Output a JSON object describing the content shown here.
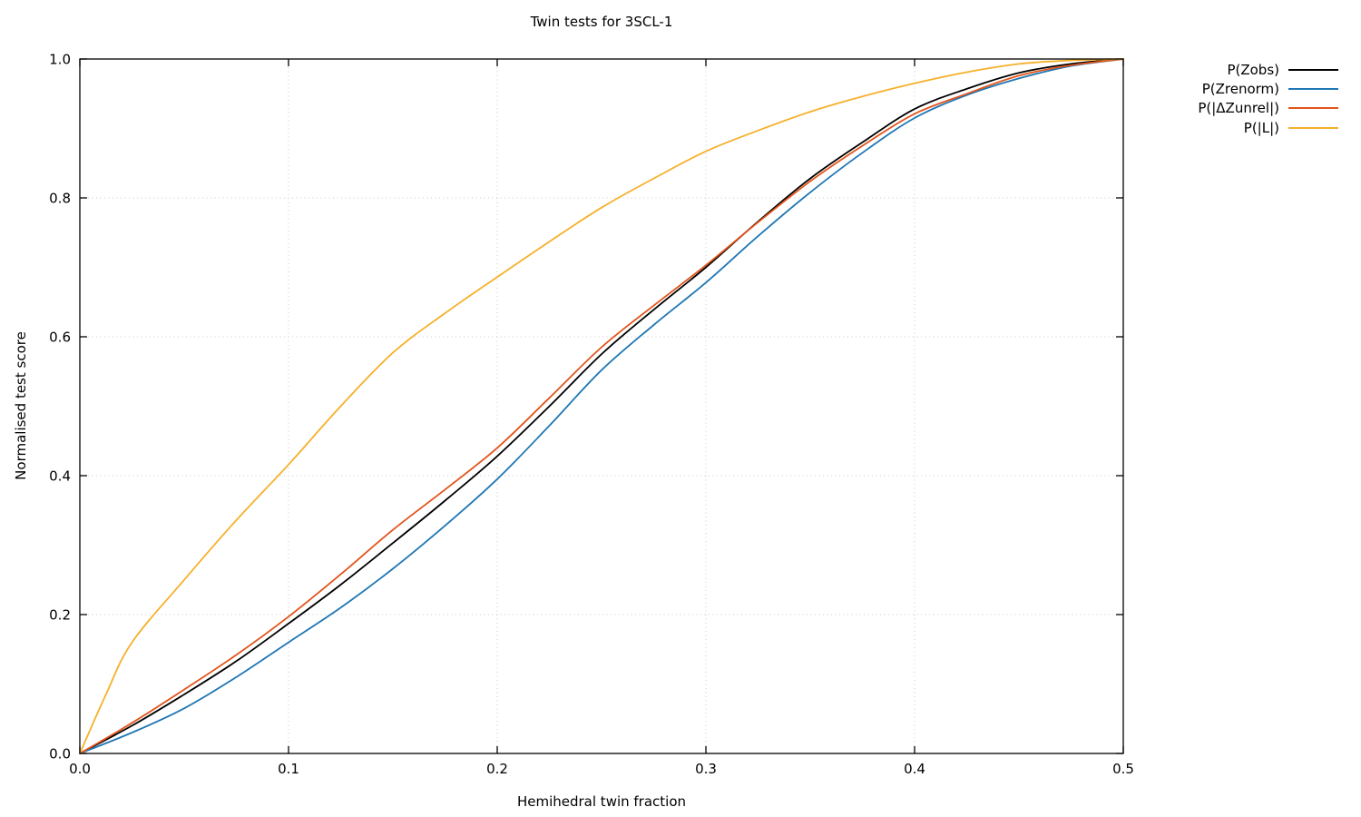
{
  "chart_data": {
    "type": "line",
    "title": "Twin tests for 3SCL-1",
    "xlabel": "Hemihedral twin fraction",
    "ylabel": "Normalised test score",
    "xlim": [
      0.0,
      0.5
    ],
    "ylim": [
      0.0,
      1.0
    ],
    "x_ticks": {
      "values": [
        0.0,
        0.1,
        0.2,
        0.3,
        0.4,
        0.5
      ],
      "labels": [
        "0.0",
        "0.1",
        "0.2",
        "0.3",
        "0.4",
        "0.5"
      ]
    },
    "y_ticks": {
      "values": [
        0.0,
        0.2,
        0.4,
        0.6,
        0.8,
        1.0
      ],
      "labels": [
        "0.0",
        "0.2",
        "0.4",
        "0.6",
        "0.8",
        "1.0"
      ]
    },
    "grid": "dotted",
    "legend_position": "outside-top-right",
    "frame": "box-with-mirrored-inward-ticks",
    "series": [
      {
        "name": "P(Zobs)",
        "color": "#000000",
        "x": [
          0,
          0.025,
          0.05,
          0.075,
          0.1,
          0.125,
          0.15,
          0.175,
          0.2,
          0.225,
          0.25,
          0.275,
          0.3,
          0.325,
          0.35,
          0.375,
          0.4,
          0.425,
          0.45,
          0.475,
          0.5
        ],
        "y": [
          0,
          0.04,
          0.085,
          0.133,
          0.187,
          0.243,
          0.303,
          0.364,
          0.428,
          0.5,
          0.575,
          0.639,
          0.7,
          0.766,
          0.828,
          0.88,
          0.928,
          0.957,
          0.98,
          0.993,
          1.0
        ]
      },
      {
        "name": "P(Zrenorm)",
        "color": "#1f77b4",
        "x": [
          0,
          0.025,
          0.05,
          0.075,
          0.1,
          0.125,
          0.15,
          0.175,
          0.2,
          0.225,
          0.25,
          0.275,
          0.3,
          0.325,
          0.35,
          0.375,
          0.4,
          0.425,
          0.45,
          0.475,
          0.5
        ],
        "y": [
          0,
          0.03,
          0.065,
          0.11,
          0.16,
          0.21,
          0.266,
          0.328,
          0.395,
          0.472,
          0.552,
          0.617,
          0.678,
          0.745,
          0.808,
          0.865,
          0.915,
          0.948,
          0.972,
          0.99,
          1.0
        ]
      },
      {
        "name": "P(|ΔZunrel|)",
        "color": "#e2541b",
        "x": [
          0,
          0.025,
          0.05,
          0.075,
          0.1,
          0.125,
          0.15,
          0.175,
          0.2,
          0.225,
          0.25,
          0.275,
          0.3,
          0.325,
          0.35,
          0.375,
          0.4,
          0.425,
          0.45,
          0.475,
          0.5
        ],
        "y": [
          0,
          0.044,
          0.092,
          0.142,
          0.197,
          0.258,
          0.322,
          0.38,
          0.44,
          0.512,
          0.585,
          0.645,
          0.703,
          0.765,
          0.824,
          0.875,
          0.921,
          0.95,
          0.976,
          0.991,
          1.0
        ]
      },
      {
        "name": "P(|L|)",
        "color": "#f6b02a",
        "x": [
          0,
          0.0125,
          0.025,
          0.05,
          0.075,
          0.1,
          0.125,
          0.15,
          0.175,
          0.2,
          0.225,
          0.25,
          0.275,
          0.3,
          0.325,
          0.35,
          0.375,
          0.4,
          0.425,
          0.45,
          0.475,
          0.5
        ],
        "y": [
          0,
          0.085,
          0.16,
          0.25,
          0.336,
          0.416,
          0.5,
          0.577,
          0.634,
          0.686,
          0.737,
          0.786,
          0.828,
          0.867,
          0.897,
          0.924,
          0.946,
          0.965,
          0.981,
          0.993,
          0.998,
          1.0
        ]
      }
    ],
    "style": {
      "grid_color": "#c8c8c8",
      "axis_color": "#000000",
      "tick_label_color": "#000000",
      "line_width": 1.8
    }
  }
}
